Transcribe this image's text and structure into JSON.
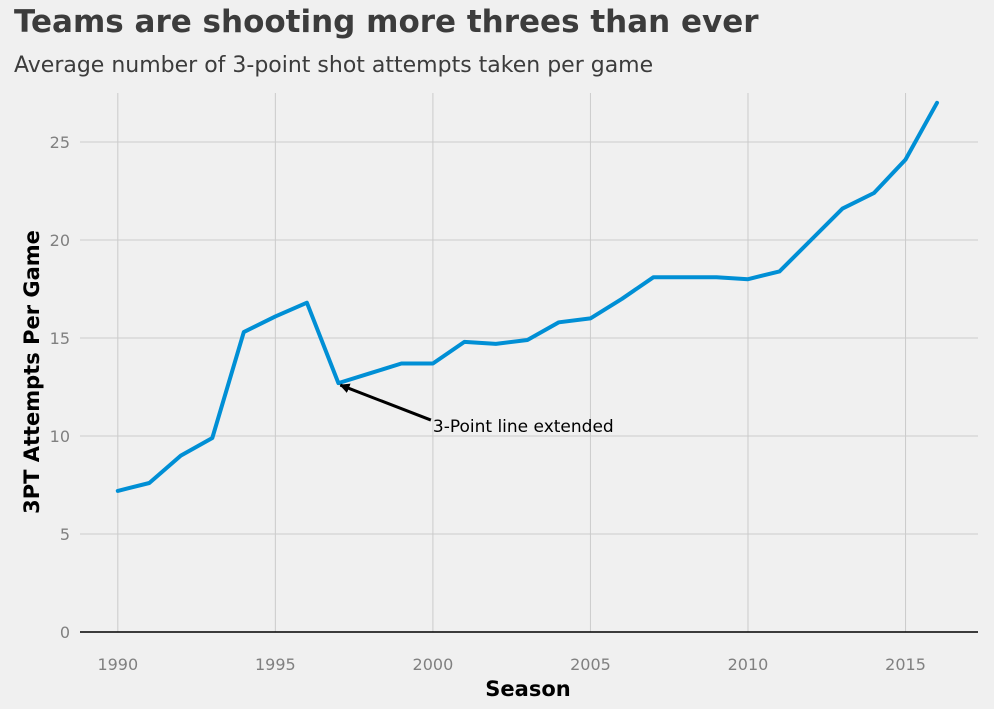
{
  "chart_data": {
    "type": "line",
    "title": "Teams are shooting more threes than ever",
    "subtitle": "Average number of 3-point shot attempts taken per game",
    "xlabel": "Season",
    "ylabel": "3PT Attempts Per Game",
    "xlim": [
      1988.8,
      2017.3
    ],
    "ylim": [
      0,
      27.5
    ],
    "xticks": [
      1990,
      1995,
      2000,
      2005,
      2010,
      2015
    ],
    "yticks": [
      0,
      5,
      10,
      15,
      20,
      25
    ],
    "grid": true,
    "series_color": "#008fd5",
    "series": [
      {
        "x": [
          1990,
          1991,
          1992,
          1993,
          1994,
          1995,
          1996,
          1997,
          1998,
          1999,
          2000,
          2001,
          2002,
          2003,
          2004,
          2005,
          2006,
          2007,
          2008,
          2009,
          2010,
          2011,
          2012,
          2013,
          2014,
          2015,
          2016
        ],
        "y": [
          7.2,
          7.6,
          9.0,
          9.9,
          15.3,
          16.1,
          16.8,
          12.7,
          13.2,
          13.7,
          13.7,
          14.8,
          14.7,
          14.9,
          15.8,
          16.0,
          17.0,
          18.1,
          18.1,
          18.1,
          18.0,
          18.4,
          20.0,
          21.6,
          22.4,
          24.1,
          27.0
        ]
      }
    ],
    "annotation": {
      "text": "3-Point line extended",
      "x": 1997,
      "y": 12.7,
      "text_x": 2000,
      "text_y": 10.2
    }
  }
}
